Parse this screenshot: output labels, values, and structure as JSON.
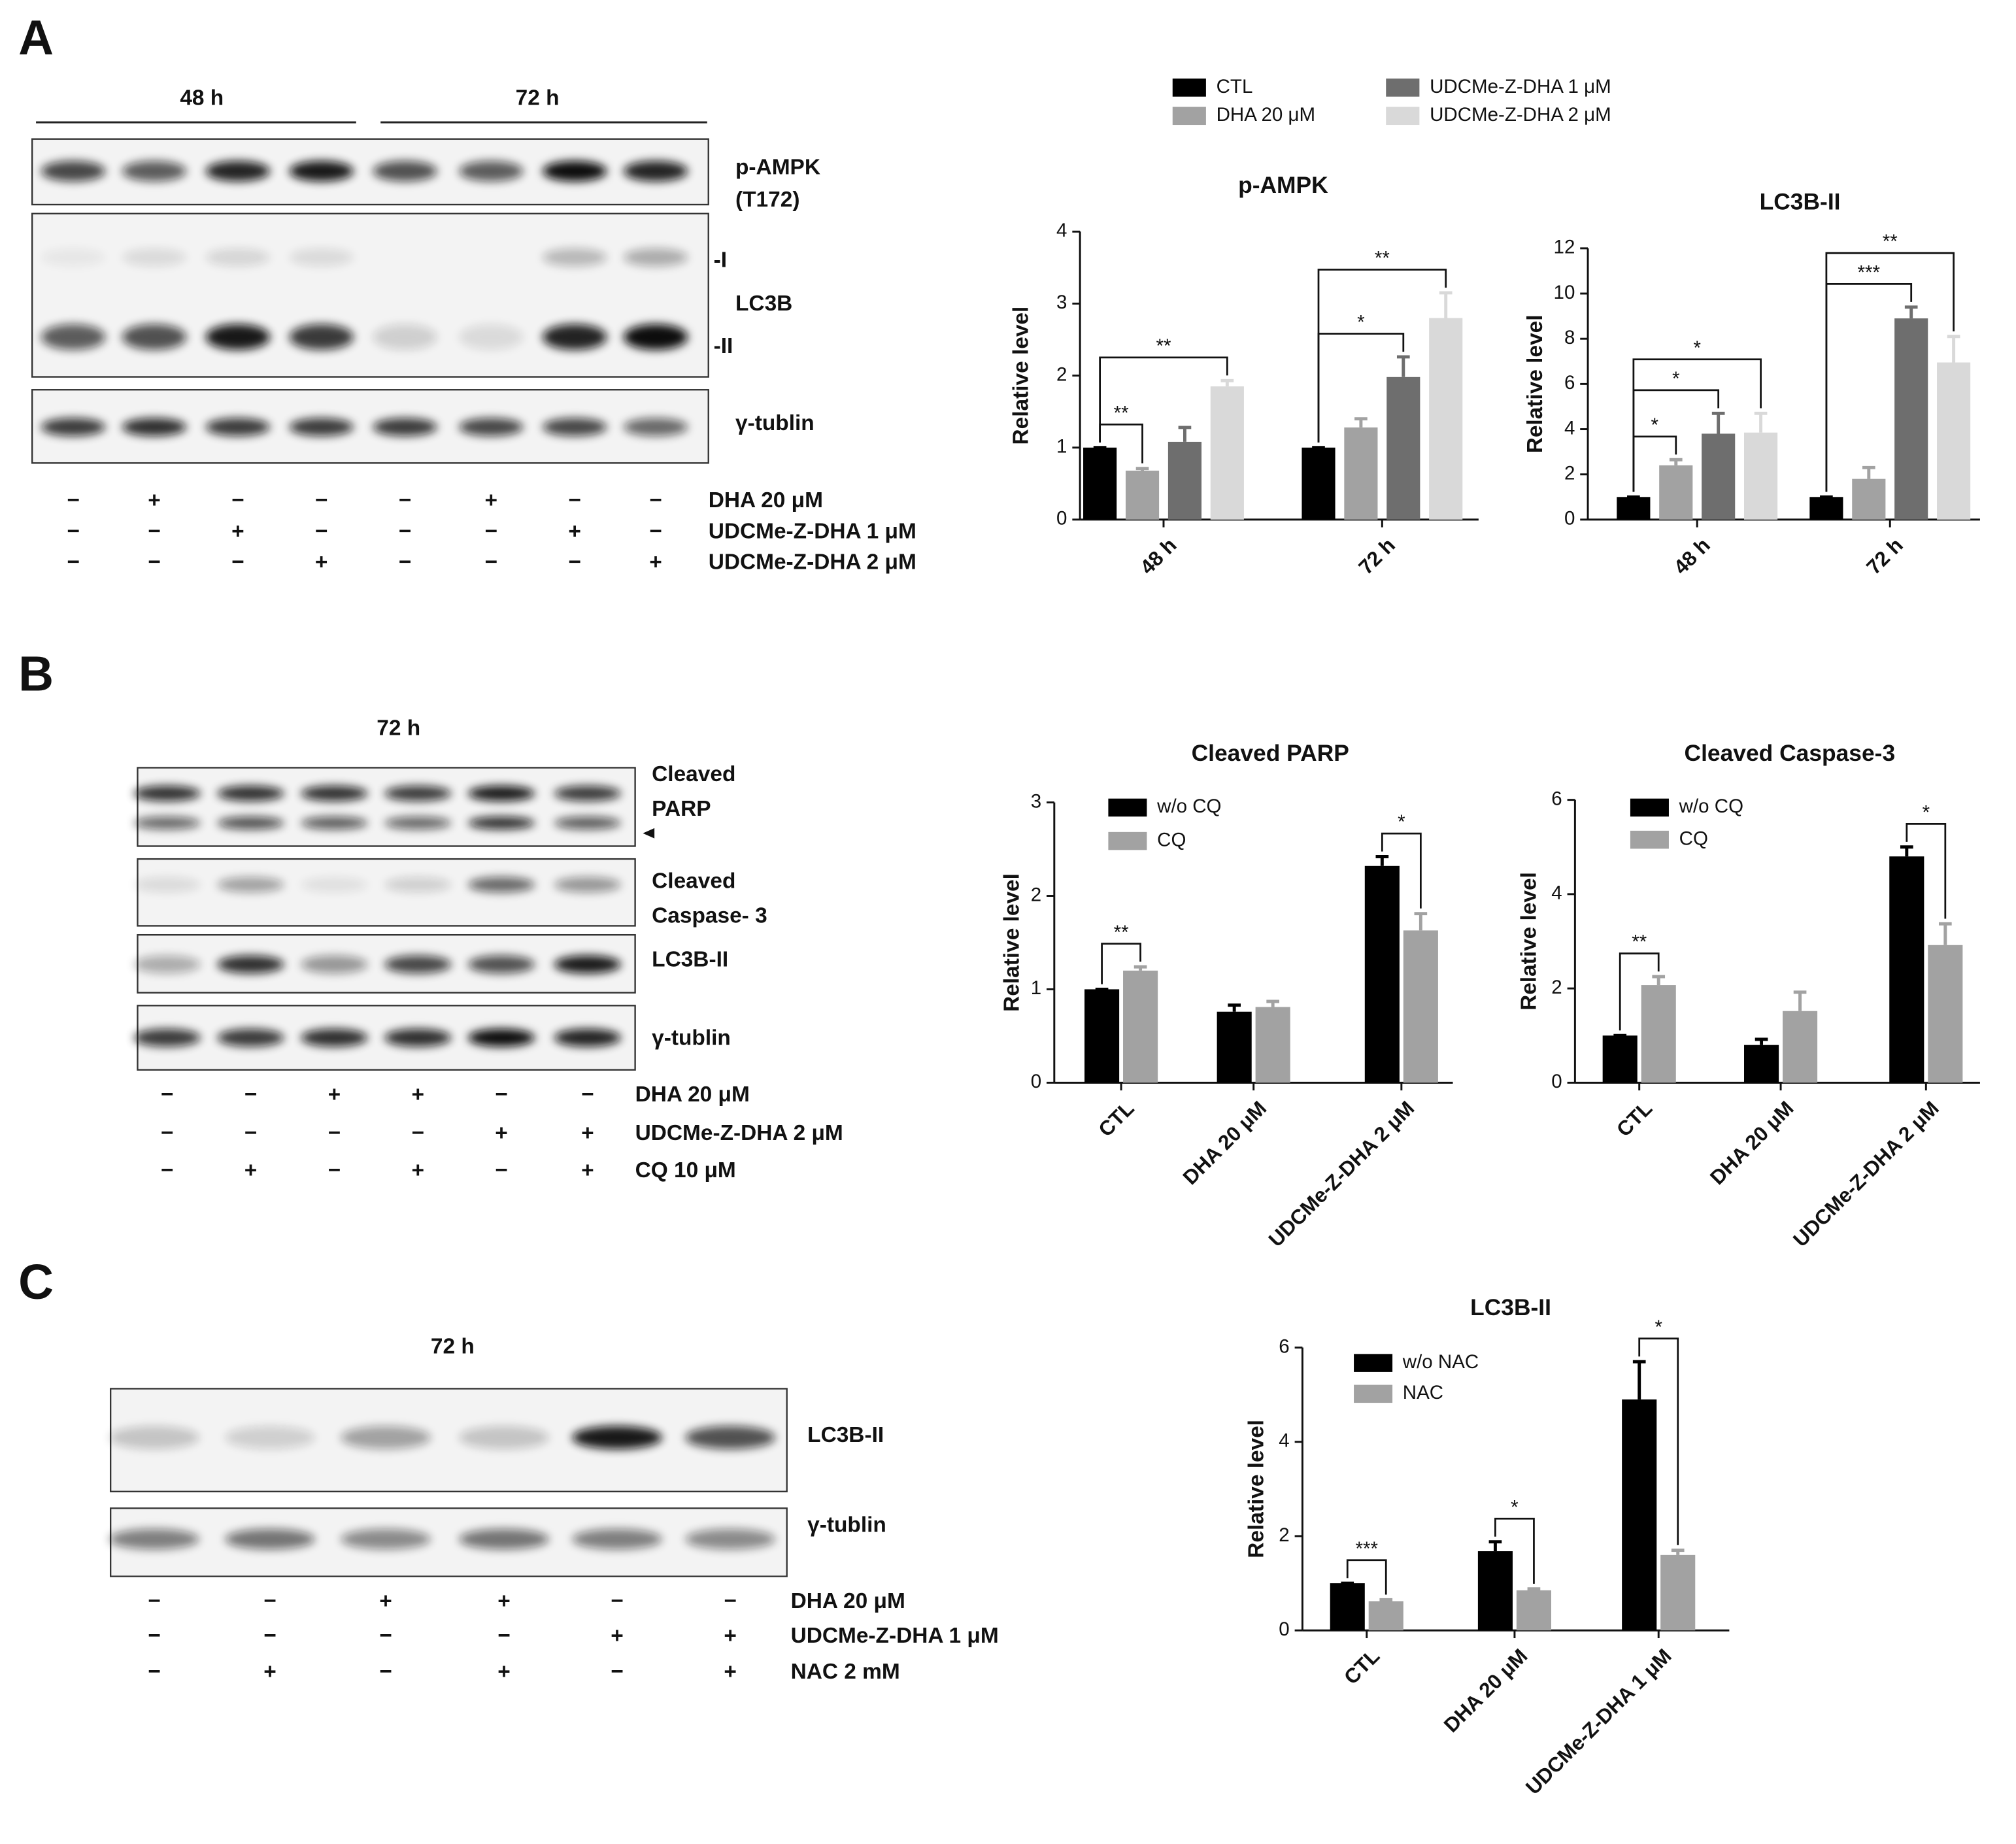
{
  "panels": [
    {
      "letter": "A",
      "timepoints": [
        "48 h",
        "72 h"
      ],
      "blot_labels": [
        "p-AMPK",
        "(T172)",
        "-I",
        "LC3B",
        "-II",
        "γ-tublin"
      ],
      "treatments": [
        {
          "label": "DHA 20 μM",
          "signs": [
            "−",
            "+",
            "−",
            "−",
            "−",
            "+",
            "−",
            "−"
          ]
        },
        {
          "label": "UDCMe-Z-DHA 1 μM",
          "signs": [
            "−",
            "−",
            "+",
            "−",
            "−",
            "−",
            "+",
            "−"
          ]
        },
        {
          "label": "UDCMe-Z-DHA 2 μM",
          "signs": [
            "−",
            "−",
            "−",
            "+",
            "−",
            "−",
            "−",
            "+"
          ]
        }
      ]
    },
    {
      "letter": "B",
      "timepoints": [
        "72 h"
      ],
      "blot_labels": [
        "Cleaved",
        "PARP",
        "Cleaved",
        "Caspase- 3",
        "LC3B-II",
        "γ-tublin"
      ],
      "treatments": [
        {
          "label": "DHA 20 μM",
          "signs": [
            "−",
            "−",
            "+",
            "+",
            "−",
            "−"
          ]
        },
        {
          "label": "UDCMe-Z-DHA 2 μM",
          "signs": [
            "−",
            "−",
            "−",
            "−",
            "+",
            "+"
          ]
        },
        {
          "label": "CQ 10 μM",
          "signs": [
            "−",
            "+",
            "−",
            "+",
            "−",
            "+"
          ]
        }
      ]
    },
    {
      "letter": "C",
      "timepoints": [
        "72 h"
      ],
      "blot_labels": [
        "LC3B-II",
        "γ-tublin"
      ],
      "treatments": [
        {
          "label": "DHA 20 μM",
          "signs": [
            "−",
            "−",
            "+",
            "+",
            "−",
            "−"
          ]
        },
        {
          "label": "UDCMe-Z-DHA 1 μM",
          "signs": [
            "−",
            "−",
            "−",
            "−",
            "+",
            "+"
          ]
        },
        {
          "label": "NAC 2 mM",
          "signs": [
            "−",
            "+",
            "−",
            "+",
            "−",
            "+"
          ]
        }
      ]
    }
  ],
  "chart_data": [
    {
      "type": "bar",
      "title": "p-AMPK",
      "ylabel": "Relative level",
      "categories": [
        "48 h",
        "72 h"
      ],
      "ylim": [
        0,
        4
      ],
      "yticks": [
        0,
        1,
        2,
        3,
        4
      ],
      "legend": "top",
      "series": [
        {
          "name": "CTL",
          "color": "#000000",
          "values": [
            1.0,
            1.0
          ],
          "errors": [
            0,
            0
          ]
        },
        {
          "name": "DHA 20 μM",
          "color": "#a2a2a2",
          "values": [
            0.68,
            1.28
          ],
          "errors": [
            0.03,
            0.12
          ]
        },
        {
          "name": "UDCMe-Z-DHA 1 μM",
          "color": "#6e6e6e",
          "values": [
            1.08,
            1.98
          ],
          "errors": [
            0.2,
            0.28
          ]
        },
        {
          "name": "UDCMe-Z-DHA 2 μM",
          "color": "#d9d9d9",
          "values": [
            1.85,
            2.8
          ],
          "errors": [
            0.08,
            0.35
          ]
        }
      ],
      "annotations": [
        {
          "text": "**",
          "category": 0,
          "bars": [
            0,
            1
          ]
        },
        {
          "text": "**",
          "category": 0,
          "bars": [
            0,
            3
          ]
        },
        {
          "text": "*",
          "category": 1,
          "bars": [
            0,
            2
          ]
        },
        {
          "text": "**",
          "category": 1,
          "bars": [
            0,
            3
          ]
        }
      ]
    },
    {
      "type": "bar",
      "title": "LC3B-II",
      "ylabel": "Relative level",
      "categories": [
        "48 h",
        "72 h"
      ],
      "ylim": [
        0,
        12
      ],
      "yticks": [
        0,
        2,
        4,
        6,
        8,
        10,
        12
      ],
      "series": [
        {
          "color": "#000000",
          "values": [
            1.0,
            1.0
          ],
          "errors": [
            0,
            0
          ]
        },
        {
          "color": "#a2a2a2",
          "values": [
            2.4,
            1.8
          ],
          "errors": [
            0.25,
            0.5
          ]
        },
        {
          "color": "#6e6e6e",
          "values": [
            3.8,
            8.9
          ],
          "errors": [
            0.9,
            0.5
          ]
        },
        {
          "color": "#d9d9d9",
          "values": [
            3.85,
            6.95
          ],
          "errors": [
            0.85,
            1.15
          ]
        }
      ],
      "annotations": [
        {
          "text": "*",
          "category": 0,
          "bars": [
            0,
            1
          ]
        },
        {
          "text": "*",
          "category": 0,
          "bars": [
            0,
            2
          ]
        },
        {
          "text": "*",
          "category": 0,
          "bars": [
            0,
            3
          ]
        },
        {
          "text": "***",
          "category": 1,
          "bars": [
            0,
            2
          ]
        },
        {
          "text": "**",
          "category": 1,
          "bars": [
            0,
            3
          ]
        }
      ]
    },
    {
      "type": "bar",
      "title": "Cleaved PARP",
      "ylabel": "Relative level",
      "categories": [
        "CTL",
        "DHA 20 μM",
        "UDCMe-Z-DHA 2 μM"
      ],
      "ylim": [
        0,
        3
      ],
      "yticks": [
        0,
        1,
        2,
        3
      ],
      "legend": "upper left",
      "series": [
        {
          "name": "w/o CQ",
          "color": "#000000",
          "values": [
            1.0,
            0.76,
            2.32
          ],
          "errors": [
            0,
            0.07,
            0.1
          ]
        },
        {
          "name": "CQ",
          "color": "#a2a2a2",
          "values": [
            1.2,
            0.81,
            1.63
          ],
          "errors": [
            0.04,
            0.06,
            0.18
          ]
        }
      ],
      "annotations": [
        {
          "text": "**",
          "category": 0,
          "bars": [
            0,
            1
          ]
        },
        {
          "text": "*",
          "category": 2,
          "bars": [
            0,
            1
          ]
        }
      ]
    },
    {
      "type": "bar",
      "title": "Cleaved Caspase-3",
      "ylabel": "Relative level",
      "categories": [
        "CTL",
        "DHA 20 μM",
        "UDCMe-Z-DHA 2 μM"
      ],
      "ylim": [
        0,
        6
      ],
      "yticks": [
        0,
        2,
        4,
        6
      ],
      "legend": "upper left",
      "series": [
        {
          "name": "w/o CQ",
          "color": "#000000",
          "values": [
            1.0,
            0.8,
            4.8
          ],
          "errors": [
            0,
            0.12,
            0.2
          ]
        },
        {
          "name": "CQ",
          "color": "#a2a2a2",
          "values": [
            2.07,
            1.52,
            2.92
          ],
          "errors": [
            0.18,
            0.4,
            0.45
          ]
        }
      ],
      "annotations": [
        {
          "text": "**",
          "category": 0,
          "bars": [
            0,
            1
          ]
        },
        {
          "text": "*",
          "category": 2,
          "bars": [
            0,
            1
          ]
        }
      ]
    },
    {
      "type": "bar",
      "title": "LC3B-II",
      "ylabel": "Relative level",
      "categories": [
        "CTL",
        "DHA 20 μM",
        "UDCMe-Z-DHA 1 μM"
      ],
      "ylim": [
        0,
        6
      ],
      "yticks": [
        0,
        2,
        4,
        6
      ],
      "legend": "upper left",
      "series": [
        {
          "name": "w/o NAC",
          "color": "#000000",
          "values": [
            1.0,
            1.68,
            4.9
          ],
          "errors": [
            0,
            0.2,
            0.8
          ]
        },
        {
          "name": "NAC",
          "color": "#a2a2a2",
          "values": [
            0.62,
            0.85,
            1.6
          ],
          "errors": [
            0.03,
            0.03,
            0.1
          ]
        }
      ],
      "annotations": [
        {
          "text": "***",
          "category": 0,
          "bars": [
            0,
            1
          ]
        },
        {
          "text": "*",
          "category": 1,
          "bars": [
            0,
            1
          ]
        },
        {
          "text": "*",
          "category": 2,
          "bars": [
            0,
            1
          ]
        }
      ]
    }
  ]
}
